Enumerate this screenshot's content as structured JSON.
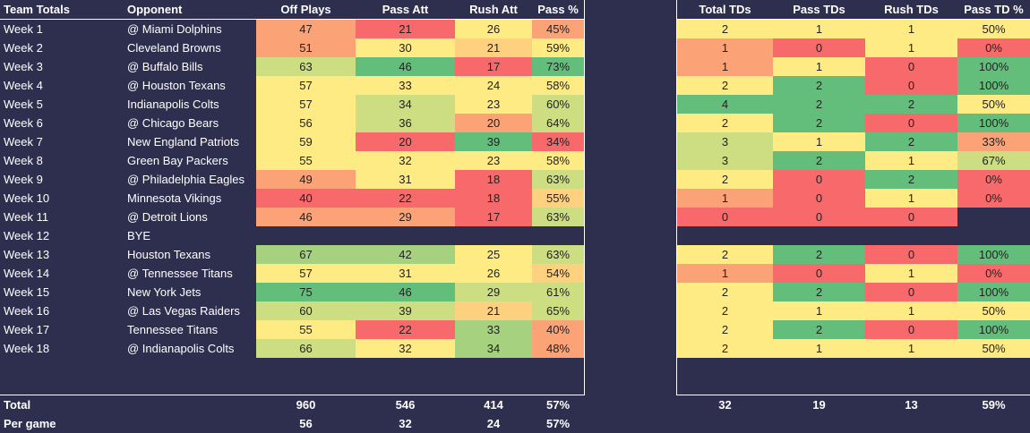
{
  "colors": {
    "red": "#f8696b",
    "orange": "#fba276",
    "gold": "#fdd17f",
    "yellow": "#ffeb84",
    "lime": "#cddd82",
    "lgreen": "#a6d17f",
    "green": "#63be7b",
    "bg": "#2e2e4e"
  },
  "left": {
    "headers": [
      "Team Totals",
      "Opponent",
      "Off Plays",
      "Pass Att",
      "Rush Att",
      "Pass %"
    ],
    "rows": [
      {
        "week": "Week 1",
        "opp": "@ Miami Dolphins",
        "v": [
          "47",
          "21",
          "26",
          "45%"
        ],
        "c": [
          "orange",
          "red",
          "yellow",
          "orange"
        ]
      },
      {
        "week": "Week 2",
        "opp": "Cleveland Browns",
        "v": [
          "51",
          "30",
          "21",
          "59%"
        ],
        "c": [
          "orange",
          "yellow",
          "gold",
          "yellow"
        ]
      },
      {
        "week": "Week 3",
        "opp": "@ Buffalo Bills",
        "v": [
          "63",
          "46",
          "17",
          "73%"
        ],
        "c": [
          "lime",
          "green",
          "red",
          "green"
        ]
      },
      {
        "week": "Week 4",
        "opp": "@ Houston Texans",
        "v": [
          "57",
          "33",
          "24",
          "58%"
        ],
        "c": [
          "yellow",
          "yellow",
          "yellow",
          "yellow"
        ]
      },
      {
        "week": "Week 5",
        "opp": "Indianapolis Colts",
        "v": [
          "57",
          "34",
          "23",
          "60%"
        ],
        "c": [
          "yellow",
          "lime",
          "yellow",
          "lime"
        ]
      },
      {
        "week": "Week 6",
        "opp": "@ Chicago Bears",
        "v": [
          "56",
          "36",
          "20",
          "64%"
        ],
        "c": [
          "yellow",
          "lime",
          "orange",
          "lime"
        ]
      },
      {
        "week": "Week 7",
        "opp": "New England Patriots",
        "v": [
          "59",
          "20",
          "39",
          "34%"
        ],
        "c": [
          "yellow",
          "red",
          "green",
          "red"
        ]
      },
      {
        "week": "Week 8",
        "opp": "Green Bay Packers",
        "v": [
          "55",
          "32",
          "23",
          "58%"
        ],
        "c": [
          "yellow",
          "yellow",
          "yellow",
          "yellow"
        ]
      },
      {
        "week": "Week 9",
        "opp": "@ Philadelphia Eagles",
        "v": [
          "49",
          "31",
          "18",
          "63%"
        ],
        "c": [
          "orange",
          "yellow",
          "red",
          "lime"
        ]
      },
      {
        "week": "Week 10",
        "opp": "Minnesota Vikings",
        "v": [
          "40",
          "22",
          "18",
          "55%"
        ],
        "c": [
          "red",
          "red",
          "red",
          "gold"
        ]
      },
      {
        "week": "Week 11",
        "opp": "@ Detroit Lions",
        "v": [
          "46",
          "29",
          "17",
          "63%"
        ],
        "c": [
          "orange",
          "orange",
          "red",
          "lime"
        ]
      },
      {
        "week": "Week 12",
        "opp": "BYE",
        "v": [
          "",
          "",
          "",
          ""
        ],
        "c": [
          "",
          "",
          "",
          ""
        ]
      },
      {
        "week": "Week 13",
        "opp": "Houston Texans",
        "v": [
          "67",
          "42",
          "25",
          "63%"
        ],
        "c": [
          "lgreen",
          "lgreen",
          "yellow",
          "lime"
        ]
      },
      {
        "week": "Week 14",
        "opp": "@ Tennessee Titans",
        "v": [
          "57",
          "31",
          "26",
          "54%"
        ],
        "c": [
          "yellow",
          "yellow",
          "yellow",
          "gold"
        ]
      },
      {
        "week": "Week 15",
        "opp": "New York Jets",
        "v": [
          "75",
          "46",
          "29",
          "61%"
        ],
        "c": [
          "green",
          "green",
          "lime",
          "lime"
        ]
      },
      {
        "week": "Week 16",
        "opp": "@ Las Vegas Raiders",
        "v": [
          "60",
          "39",
          "21",
          "65%"
        ],
        "c": [
          "lime",
          "lime",
          "gold",
          "lime"
        ]
      },
      {
        "week": "Week 17",
        "opp": "Tennessee Titans",
        "v": [
          "55",
          "22",
          "33",
          "40%"
        ],
        "c": [
          "yellow",
          "red",
          "lgreen",
          "orange"
        ]
      },
      {
        "week": "Week 18",
        "opp": "@ Indianapolis Colts",
        "v": [
          "66",
          "32",
          "34",
          "48%"
        ],
        "c": [
          "lime",
          "yellow",
          "lgreen",
          "orange"
        ]
      }
    ],
    "total": {
      "label": "Total",
      "v": [
        "960",
        "546",
        "414",
        "57%"
      ]
    },
    "pergame": {
      "label": "Per game",
      "v": [
        "56",
        "32",
        "24",
        "57%"
      ]
    }
  },
  "right": {
    "headers": [
      "Total TDs",
      "Pass TDs",
      "Rush TDs",
      "Pass TD %"
    ],
    "rows": [
      {
        "v": [
          "2",
          "1",
          "1",
          "50%"
        ],
        "c": [
          "yellow",
          "yellow",
          "yellow",
          "yellow"
        ]
      },
      {
        "v": [
          "1",
          "0",
          "1",
          "0%"
        ],
        "c": [
          "orange",
          "red",
          "yellow",
          "red"
        ]
      },
      {
        "v": [
          "1",
          "1",
          "0",
          "100%"
        ],
        "c": [
          "orange",
          "yellow",
          "red",
          "green"
        ]
      },
      {
        "v": [
          "2",
          "2",
          "0",
          "100%"
        ],
        "c": [
          "yellow",
          "green",
          "red",
          "green"
        ]
      },
      {
        "v": [
          "4",
          "2",
          "2",
          "50%"
        ],
        "c": [
          "green",
          "green",
          "green",
          "yellow"
        ]
      },
      {
        "v": [
          "2",
          "2",
          "0",
          "100%"
        ],
        "c": [
          "yellow",
          "green",
          "red",
          "green"
        ]
      },
      {
        "v": [
          "3",
          "1",
          "2",
          "33%"
        ],
        "c": [
          "lime",
          "yellow",
          "green",
          "orange"
        ]
      },
      {
        "v": [
          "3",
          "2",
          "1",
          "67%"
        ],
        "c": [
          "lime",
          "green",
          "yellow",
          "lime"
        ]
      },
      {
        "v": [
          "2",
          "0",
          "2",
          "0%"
        ],
        "c": [
          "yellow",
          "red",
          "green",
          "red"
        ]
      },
      {
        "v": [
          "1",
          "0",
          "1",
          "0%"
        ],
        "c": [
          "orange",
          "red",
          "yellow",
          "red"
        ]
      },
      {
        "v": [
          "0",
          "0",
          "0",
          ""
        ],
        "c": [
          "red",
          "red",
          "red",
          ""
        ]
      },
      {
        "v": [
          "",
          "",
          "",
          ""
        ],
        "c": [
          "",
          "",
          "",
          ""
        ]
      },
      {
        "v": [
          "2",
          "2",
          "0",
          "100%"
        ],
        "c": [
          "yellow",
          "green",
          "red",
          "green"
        ]
      },
      {
        "v": [
          "1",
          "0",
          "1",
          "0%"
        ],
        "c": [
          "orange",
          "red",
          "yellow",
          "red"
        ]
      },
      {
        "v": [
          "2",
          "2",
          "0",
          "100%"
        ],
        "c": [
          "yellow",
          "green",
          "red",
          "green"
        ]
      },
      {
        "v": [
          "2",
          "1",
          "1",
          "50%"
        ],
        "c": [
          "yellow",
          "yellow",
          "yellow",
          "yellow"
        ]
      },
      {
        "v": [
          "2",
          "2",
          "0",
          "100%"
        ],
        "c": [
          "yellow",
          "green",
          "red",
          "green"
        ]
      },
      {
        "v": [
          "2",
          "1",
          "1",
          "50%"
        ],
        "c": [
          "yellow",
          "yellow",
          "yellow",
          "yellow"
        ]
      }
    ],
    "total": {
      "v": [
        "32",
        "19",
        "13",
        "59%"
      ]
    }
  }
}
